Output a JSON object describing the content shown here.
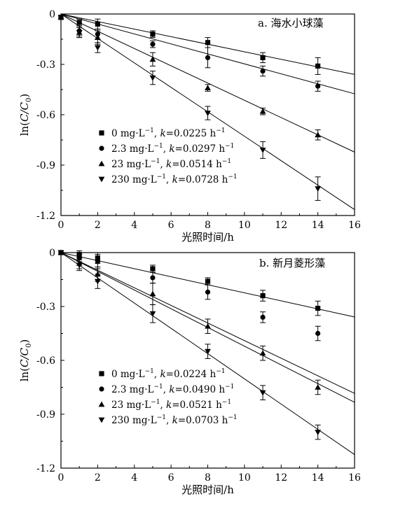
{
  "chart_data": [
    {
      "type": "scatter",
      "panel_label": "a. 海水小球藻",
      "xlabel": "光照时间/h",
      "ylabel_main": "ln(",
      "ylabel_italic": "C/C",
      "ylabel_sub": "0",
      "ylabel_close": ")",
      "xlim": [
        0,
        16
      ],
      "ylim": [
        -1.2,
        0
      ],
      "x_ticks": [
        "0",
        "2",
        "4",
        "6",
        "8",
        "10",
        "12",
        "14",
        "16"
      ],
      "y_ticks": [
        "0",
        "-0.3",
        "-0.6",
        "-0.9",
        "-1.2"
      ],
      "series": [
        {
          "marker": "square",
          "legend_conc": "0 mg·L",
          "legend_k": "=0.0225 h",
          "k": 0.0225,
          "x": [
            0,
            1,
            2,
            5,
            8,
            11,
            14
          ],
          "y": [
            -0.02,
            -0.05,
            -0.06,
            -0.12,
            -0.17,
            -0.26,
            -0.31
          ],
          "err": [
            0.01,
            0.02,
            0.03,
            0.02,
            0.03,
            0.03,
            0.05
          ]
        },
        {
          "marker": "circle",
          "legend_conc": "2.3 mg·L",
          "legend_k": "=0.0297 h",
          "k": 0.0297,
          "x": [
            0,
            1,
            2,
            5,
            8,
            11,
            14
          ],
          "y": [
            -0.02,
            -0.1,
            -0.12,
            -0.18,
            -0.26,
            -0.34,
            -0.43
          ],
          "err": [
            0.01,
            0.03,
            0.03,
            0.02,
            0.06,
            0.03,
            0.03
          ]
        },
        {
          "marker": "triangle-up",
          "legend_conc": "23 mg·L",
          "legend_k": "=0.0514 h",
          "k": 0.0514,
          "x": [
            0,
            1,
            2,
            5,
            8,
            11,
            14
          ],
          "y": [
            -0.02,
            -0.11,
            -0.14,
            -0.27,
            -0.44,
            -0.58,
            -0.72
          ],
          "err": [
            0.01,
            0.03,
            0.04,
            0.04,
            0.02,
            0.02,
            0.03
          ]
        },
        {
          "marker": "triangle-down",
          "legend_conc": "230 mg·L",
          "legend_k": "=0.0728 h",
          "k": 0.0728,
          "x": [
            0,
            1,
            2,
            5,
            8,
            11,
            14
          ],
          "y": [
            -0.02,
            -0.11,
            -0.2,
            -0.38,
            -0.59,
            -0.81,
            -1.04
          ],
          "err": [
            0.01,
            0.03,
            0.03,
            0.04,
            0.04,
            0.05,
            0.07
          ]
        }
      ]
    },
    {
      "type": "scatter",
      "panel_label": "b. 新月菱形藻",
      "xlabel": "光照时间/h",
      "ylabel_main": "ln(",
      "ylabel_italic": "C/C",
      "ylabel_sub": "0",
      "ylabel_close": ")",
      "xlim": [
        0,
        16
      ],
      "ylim": [
        -1.2,
        0
      ],
      "x_ticks": [
        "0",
        "2",
        "4",
        "6",
        "8",
        "10",
        "12",
        "14",
        "16"
      ],
      "y_ticks": [
        "0",
        "-0.3",
        "-0.6",
        "-0.9",
        "-1.2"
      ],
      "series": [
        {
          "marker": "square",
          "legend_conc": "0 mg·L",
          "legend_k": "=0.0224 h",
          "k": 0.0224,
          "x": [
            0,
            1,
            2,
            5,
            8,
            11,
            14
          ],
          "y": [
            0.0,
            -0.01,
            -0.03,
            -0.09,
            -0.16,
            -0.24,
            -0.31
          ],
          "err": [
            0.01,
            0.02,
            0.03,
            0.02,
            0.02,
            0.03,
            0.04
          ]
        },
        {
          "marker": "circle",
          "legend_conc": "2.3 mg·L",
          "legend_k": "=0.0490 h",
          "k": 0.049,
          "x": [
            0,
            1,
            2,
            5,
            8,
            11,
            14
          ],
          "y": [
            0.0,
            -0.03,
            -0.05,
            -0.14,
            -0.22,
            -0.36,
            -0.45
          ],
          "err": [
            0.01,
            0.02,
            0.04,
            0.03,
            0.04,
            0.03,
            0.04
          ]
        },
        {
          "marker": "triangle-up",
          "legend_conc": "23 mg·L",
          "legend_k": "=0.0521 h",
          "k": 0.0521,
          "x": [
            0,
            1,
            2,
            5,
            8,
            11,
            14
          ],
          "y": [
            0.0,
            -0.06,
            -0.12,
            -0.23,
            -0.41,
            -0.56,
            -0.75
          ],
          "err": [
            0.01,
            0.03,
            0.04,
            0.06,
            0.04,
            0.04,
            0.04
          ]
        },
        {
          "marker": "triangle-down",
          "legend_conc": "230 mg·L",
          "legend_k": "=0.0703 h",
          "k": 0.0703,
          "x": [
            0,
            1,
            2,
            5,
            8,
            11,
            14
          ],
          "y": [
            0.0,
            -0.07,
            -0.16,
            -0.34,
            -0.55,
            -0.78,
            -1.0
          ],
          "err": [
            0.01,
            0.03,
            0.04,
            0.05,
            0.04,
            0.04,
            0.04
          ]
        }
      ]
    }
  ],
  "legend_symbols": {
    "k": "k",
    "unit_conc_exp": "−1",
    "unit_k_exp": "−1",
    "unit_k_suffix": " h"
  }
}
